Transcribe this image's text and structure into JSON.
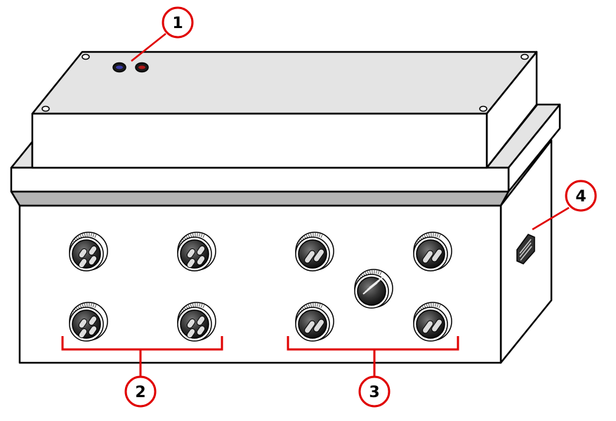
{
  "callouts": [
    {
      "id": "1",
      "label": "1",
      "target": "indicator-lights"
    },
    {
      "id": "2",
      "label": "2",
      "target": "left-connector-group"
    },
    {
      "id": "3",
      "label": "3",
      "target": "right-connector-group"
    },
    {
      "id": "4",
      "label": "4",
      "target": "side-vent"
    }
  ],
  "colors": {
    "callout": "#e00000",
    "lid_top": "#e4e4e4",
    "box_face": "#ffffff",
    "gasket": "#b4b4b4",
    "led_blue": "#3a3aa8",
    "led_red": "#b01818"
  },
  "connectors": {
    "left_group_count": 4,
    "right_group_count": 5
  }
}
